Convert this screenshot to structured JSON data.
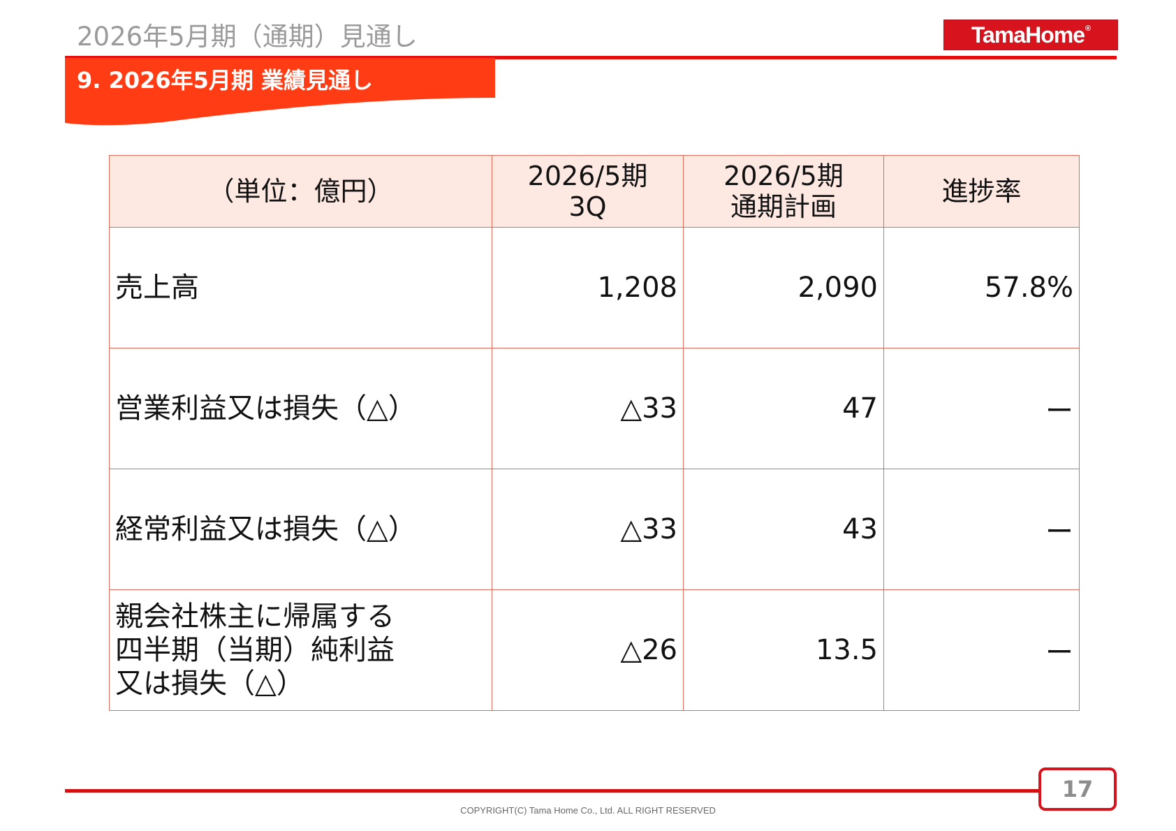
{
  "header": {
    "page_title": "2026年5月期（通期）見通し",
    "logo_text": "TamaHome",
    "logo_mark": "®"
  },
  "section": {
    "title": "9. 2026年5月期 業績見通し"
  },
  "table": {
    "headers": [
      {
        "line1": "（単位：億円）",
        "line2": ""
      },
      {
        "line1": "2026/5期",
        "line2": "3Q"
      },
      {
        "line1": "2026/5期",
        "line2": "通期計画"
      },
      {
        "line1": "進捗率",
        "line2": ""
      }
    ],
    "rows": [
      {
        "label": [
          "売上高"
        ],
        "q3": "1,208",
        "plan": "2,090",
        "progress": "57.8%"
      },
      {
        "label": [
          "営業利益又は損失（△）"
        ],
        "q3": "△33",
        "plan": "47",
        "progress": "ー"
      },
      {
        "label": [
          "経常利益又は損失（△）"
        ],
        "q3": "△33",
        "plan": "43",
        "progress": "ー"
      },
      {
        "label": [
          "親会社株主に帰属する",
          "四半期（当期）純利益",
          "又は損失（△）"
        ],
        "q3": "△26",
        "plan": "13.5",
        "progress": "ー"
      }
    ]
  },
  "footer": {
    "page_number": "17",
    "copyright": "COPYRIGHT(C)  Tama Home Co., Ltd.   ALL RIGHT RESERVED"
  },
  "colors": {
    "accent_red": "#e60f0f",
    "banner_red": "#ff3c14",
    "header_fill": "#fde8e2",
    "cell_border": "#e06a5a"
  }
}
